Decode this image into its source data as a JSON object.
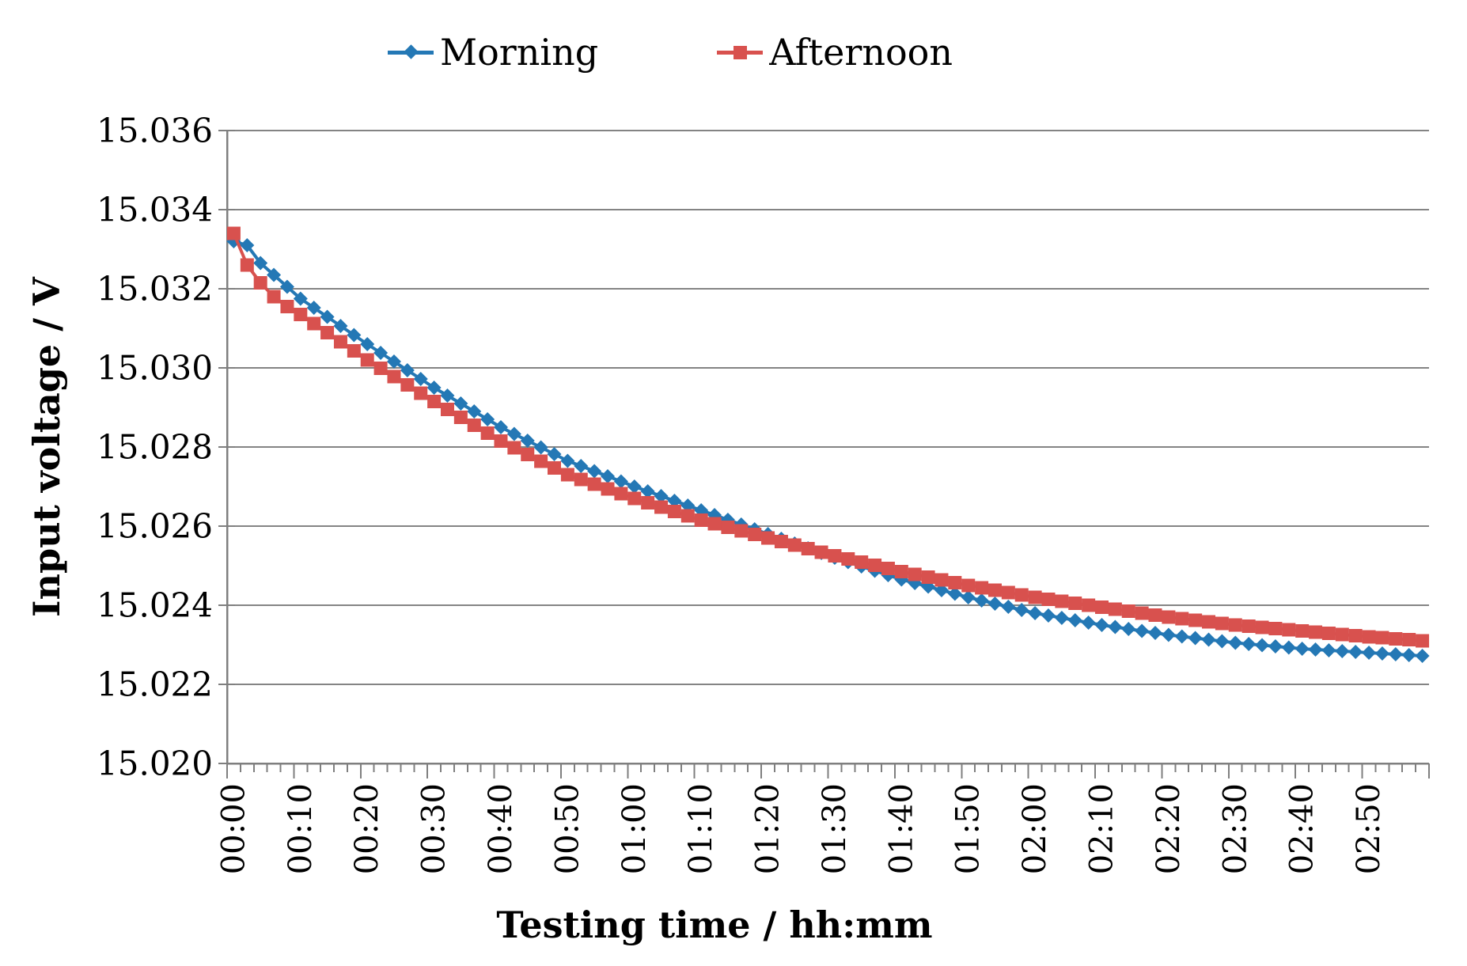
{
  "chart_data": {
    "type": "line",
    "title": "",
    "xlabel": "Testing time / hh:mm",
    "ylabel": "Input voltage / V",
    "legend_position": "top-center",
    "grid": "horizontal",
    "ylim": [
      15.02,
      15.036
    ],
    "ytick_step": 0.002,
    "ytick_labels": [
      "15.020",
      "15.022",
      "15.024",
      "15.026",
      "15.028",
      "15.030",
      "15.032",
      "15.034",
      "15.036"
    ],
    "x_major_tick_every": 5,
    "colors": {
      "grid": "#848484",
      "axis": "#7F7F7F",
      "text": "#000000",
      "background": "#FFFFFF"
    },
    "x_categories": [
      "00:00",
      "00:02",
      "00:04",
      "00:06",
      "00:08",
      "00:10",
      "00:12",
      "00:14",
      "00:16",
      "00:18",
      "00:20",
      "00:22",
      "00:24",
      "00:26",
      "00:28",
      "00:30",
      "00:32",
      "00:34",
      "00:36",
      "00:38",
      "00:40",
      "00:42",
      "00:44",
      "00:46",
      "00:48",
      "00:50",
      "00:52",
      "00:54",
      "00:56",
      "00:58",
      "01:00",
      "01:02",
      "01:04",
      "01:06",
      "01:08",
      "01:10",
      "01:12",
      "01:14",
      "01:16",
      "01:18",
      "01:20",
      "01:22",
      "01:24",
      "01:26",
      "01:28",
      "01:30",
      "01:32",
      "01:34",
      "01:36",
      "01:38",
      "01:40",
      "01:42",
      "01:44",
      "01:46",
      "01:48",
      "01:50",
      "01:52",
      "01:54",
      "01:56",
      "01:58",
      "02:00",
      "02:02",
      "02:04",
      "02:06",
      "02:08",
      "02:10",
      "02:12",
      "02:14",
      "02:16",
      "02:18",
      "02:20",
      "02:22",
      "02:24",
      "02:26",
      "02:28",
      "02:30",
      "02:32",
      "02:34",
      "02:36",
      "02:38",
      "02:40",
      "02:42",
      "02:44",
      "02:46",
      "02:48",
      "02:50",
      "02:52",
      "02:54",
      "02:56",
      "02:58"
    ],
    "series": [
      {
        "name": "Morning",
        "marker": "diamond",
        "color": "#2478B5",
        "values": [
          15.0332,
          15.0331,
          15.03265,
          15.03235,
          15.03205,
          15.03175,
          15.03152,
          15.03129,
          15.03106,
          15.03083,
          15.0306,
          15.03038,
          15.03016,
          15.02994,
          15.02972,
          15.0295,
          15.0293,
          15.0291,
          15.0289,
          15.0287,
          15.0285,
          15.02833,
          15.02816,
          15.02799,
          15.02782,
          15.02765,
          15.02752,
          15.02739,
          15.02726,
          15.02713,
          15.027,
          15.02688,
          15.02676,
          15.02664,
          15.02652,
          15.0264,
          15.02628,
          15.02616,
          15.02604,
          15.02592,
          15.0258,
          15.02568,
          15.02556,
          15.02544,
          15.02532,
          15.0252,
          15.02509,
          15.02498,
          15.02487,
          15.02476,
          15.02465,
          15.02456,
          15.02447,
          15.02438,
          15.02429,
          15.0242,
          15.02412,
          15.02404,
          15.02396,
          15.02388,
          15.0238,
          15.02374,
          15.02368,
          15.02362,
          15.02356,
          15.0235,
          15.02345,
          15.0234,
          15.02335,
          15.0233,
          15.02325,
          15.02321,
          15.02317,
          15.02313,
          15.02309,
          15.02305,
          15.02302,
          15.02299,
          15.02296,
          15.02293,
          15.0229,
          15.02288,
          15.02286,
          15.02284,
          15.02282,
          15.0228,
          15.02278,
          15.02276,
          15.02274,
          15.02272
        ]
      },
      {
        "name": "Afternoon",
        "marker": "square",
        "color": "#D8514E",
        "values": [
          15.0334,
          15.0326,
          15.03215,
          15.0318,
          15.03155,
          15.03135,
          15.03112,
          15.03089,
          15.03066,
          15.03043,
          15.0302,
          15.02999,
          15.02978,
          15.02957,
          15.02936,
          15.02915,
          15.02895,
          15.02875,
          15.02855,
          15.02835,
          15.02815,
          15.02798,
          15.02781,
          15.02764,
          15.02747,
          15.0273,
          15.02718,
          15.02706,
          15.02694,
          15.02682,
          15.0267,
          15.02659,
          15.02648,
          15.02637,
          15.02626,
          15.02615,
          15.02606,
          15.02597,
          15.02588,
          15.02579,
          15.0257,
          15.02561,
          15.02552,
          15.02543,
          15.02534,
          15.02525,
          15.02517,
          15.02509,
          15.02501,
          15.02493,
          15.02485,
          15.02478,
          15.02471,
          15.02464,
          15.02457,
          15.0245,
          15.02444,
          15.02438,
          15.02432,
          15.02426,
          15.0242,
          15.02415,
          15.0241,
          15.02405,
          15.024,
          15.02395,
          15.0239,
          15.02385,
          15.0238,
          15.02375,
          15.0237,
          15.02366,
          15.02362,
          15.02358,
          15.02354,
          15.0235,
          15.02347,
          15.02344,
          15.02341,
          15.02338,
          15.02335,
          15.02332,
          15.02329,
          15.02326,
          15.02323,
          15.0232,
          15.02318,
          15.02315,
          15.02313,
          15.0231
        ]
      }
    ]
  }
}
